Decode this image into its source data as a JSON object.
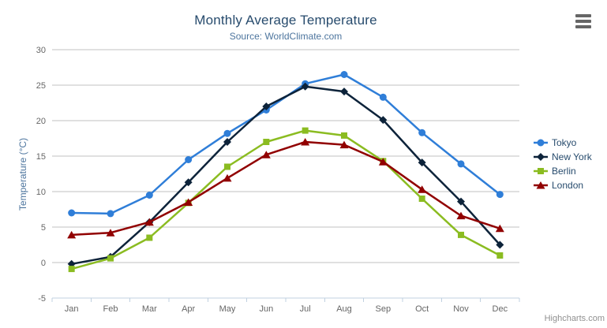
{
  "chart_data": {
    "type": "line",
    "title": "Monthly Average Temperature",
    "subtitle": "Source: WorldClimate.com",
    "categories": [
      "Jan",
      "Feb",
      "Mar",
      "Apr",
      "May",
      "Jun",
      "Jul",
      "Aug",
      "Sep",
      "Oct",
      "Nov",
      "Dec"
    ],
    "xlabel": "",
    "ylabel": "Temperature (°C)",
    "ylim": [
      -5,
      30
    ],
    "ytick_step": 5,
    "grid": true,
    "legend_position": "right",
    "series": [
      {
        "name": "Tokyo",
        "color": "#2f7ed8",
        "marker": "circle",
        "values": [
          7.0,
          6.9,
          9.5,
          14.5,
          18.2,
          21.5,
          25.2,
          26.5,
          23.3,
          18.3,
          13.9,
          9.6
        ]
      },
      {
        "name": "New York",
        "color": "#0d233a",
        "marker": "diamond",
        "values": [
          -0.2,
          0.8,
          5.7,
          11.3,
          17.0,
          22.0,
          24.8,
          24.1,
          20.1,
          14.1,
          8.6,
          2.5
        ]
      },
      {
        "name": "Berlin",
        "color": "#8bbc21",
        "marker": "square",
        "values": [
          -0.9,
          0.6,
          3.5,
          8.4,
          13.5,
          17.0,
          18.6,
          17.9,
          14.3,
          9.0,
          3.9,
          1.0
        ]
      },
      {
        "name": "London",
        "color": "#910000",
        "marker": "triangle",
        "values": [
          3.9,
          4.2,
          5.7,
          8.5,
          11.9,
          15.2,
          17.0,
          16.6,
          14.2,
          10.3,
          6.6,
          4.8
        ]
      }
    ],
    "axis_colors": {
      "grid": "#C0C0C0",
      "axis_line": "#C0D0E0",
      "tick_label": "#666666"
    }
  },
  "credits": {
    "text": "Highcharts.com"
  },
  "icons": {
    "export_menu": "hamburger-icon"
  }
}
